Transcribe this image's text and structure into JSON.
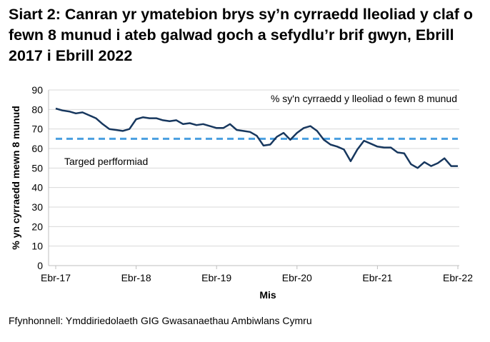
{
  "title": "Siart 2: Canran yr ymatebion brys sy’n cyrraedd lleoliad y claf o fewn 8 munud i ateb galwad goch a sefydlu’r brif gwyn, Ebrill 2017 i Ebrill 2022",
  "source": "Ffynhonnell: Ymddiriedolaeth GIG Gwasanaethau Ambiwlans Cymru",
  "chart_data": {
    "type": "line",
    "xlabel": "Mis",
    "ylabel": "% yn cyrraedd mewn 8 munud",
    "ylim": [
      0,
      90
    ],
    "yticks": [
      0,
      10,
      20,
      30,
      40,
      50,
      60,
      70,
      80,
      90
    ],
    "xtick_labels": [
      "Ebr-17",
      "Ebr-18",
      "Ebr-19",
      "Ebr-20",
      "Ebr-21",
      "Ebr-22"
    ],
    "x_start": "2017-04",
    "x_end": "2022-04",
    "grid": "horizontal",
    "series": [
      {
        "name": "% sy'n cyrraedd y lleoliad o fewn 8 munud",
        "color": "#17375e",
        "values": [
          80.5,
          79.5,
          79.0,
          78.0,
          78.5,
          77.0,
          75.5,
          72.5,
          70.0,
          69.5,
          69.0,
          70.0,
          75.0,
          76.0,
          75.5,
          75.5,
          74.5,
          74.0,
          74.5,
          72.5,
          73.0,
          72.0,
          72.5,
          71.5,
          70.5,
          70.5,
          72.5,
          69.5,
          69.0,
          68.5,
          66.5,
          61.5,
          62.0,
          66.0,
          68.0,
          64.5,
          68.0,
          70.5,
          71.5,
          69.0,
          64.5,
          62.0,
          61.0,
          59.5,
          53.5,
          59.5,
          64.0,
          62.5,
          61.0,
          60.5,
          60.5,
          58.0,
          57.5,
          52.0,
          50.0,
          53.0,
          51.0,
          52.5,
          55.0,
          51.0,
          51.0
        ]
      },
      {
        "name": "Targed perfformiad",
        "color": "#4a9fe0",
        "dashed": true,
        "values": [
          65
        ]
      }
    ],
    "colors": {
      "line": "#17375e",
      "target": "#4a9fe0",
      "grid": "#d9d9d9"
    }
  }
}
